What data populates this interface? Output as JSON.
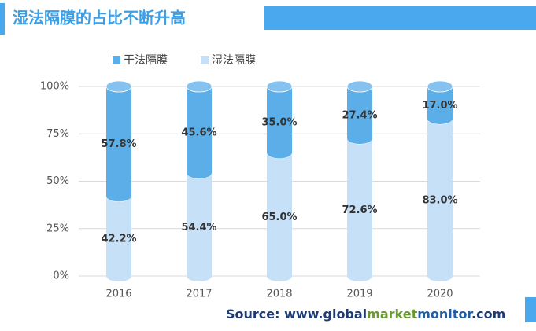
{
  "chart_data": {
    "type": "stacked-cylinder",
    "title": "湿法隔膜的占比不断升高",
    "categories": [
      "2016",
      "2017",
      "2018",
      "2019",
      "2020"
    ],
    "series": [
      {
        "name": "湿法隔膜",
        "color": "#c5e0f7",
        "values": [
          42.2,
          54.4,
          65.0,
          72.6,
          83.0
        ],
        "value_labels": [
          "42.2%",
          "54.4%",
          "65.0%",
          "72.6%",
          "83.0%"
        ]
      },
      {
        "name": "干法隔膜",
        "color": "#5caee9",
        "values": [
          57.8,
          45.6,
          35.0,
          27.4,
          17.0
        ],
        "value_labels": [
          "57.8%",
          "45.6%",
          "35.0%",
          "27.4%",
          "17.0%"
        ]
      }
    ],
    "ylim": [
      0,
      100
    ],
    "yticks": [
      {
        "value": 0,
        "label": "0%"
      },
      {
        "value": 25,
        "label": "25%"
      },
      {
        "value": 50,
        "label": "50%"
      },
      {
        "value": 75,
        "label": "75%"
      },
      {
        "value": 100,
        "label": "100%"
      }
    ],
    "grid": true,
    "source": [
      {
        "text": "Source: www.",
        "color": "#1f3b73"
      },
      {
        "text": "global",
        "color": "#1f3b73"
      },
      {
        "text": "market",
        "color": "#6a9a2a"
      },
      {
        "text": "monitor",
        "color": "#1f5fa8"
      },
      {
        "text": ".com",
        "color": "#1f3b73"
      }
    ]
  }
}
